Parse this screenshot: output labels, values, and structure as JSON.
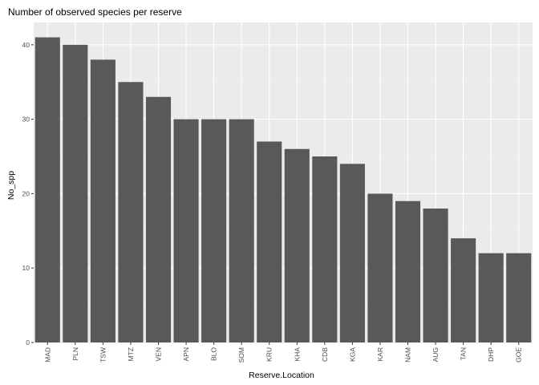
{
  "chart_data": {
    "type": "bar",
    "title": "Number of observed species per reserve",
    "xlabel": "Reserve.Location",
    "ylabel": "No_spp",
    "categories": [
      "MAD",
      "PLN",
      "TSW",
      "MTZ",
      "VEN",
      "APN",
      "BLO",
      "SOM",
      "KRU",
      "KHA",
      "CDB",
      "KGA",
      "KAR",
      "NAM",
      "AUG",
      "TAN",
      "DHP",
      "GOE"
    ],
    "values": [
      41,
      40,
      38,
      35,
      33,
      30,
      30,
      30,
      27,
      26,
      25,
      24,
      20,
      19,
      18,
      14,
      12,
      12
    ],
    "ylim": [
      0,
      43
    ],
    "yticks": [
      0,
      10,
      20,
      30,
      40
    ],
    "grid": true,
    "legend": "none",
    "colors": {
      "bar": "#595959",
      "panel": "#ebebeb",
      "grid_major": "#ffffff",
      "grid_minor": "#f5f5f5",
      "tick_text": "#4d4d4d",
      "tick_mark": "#333333"
    }
  }
}
